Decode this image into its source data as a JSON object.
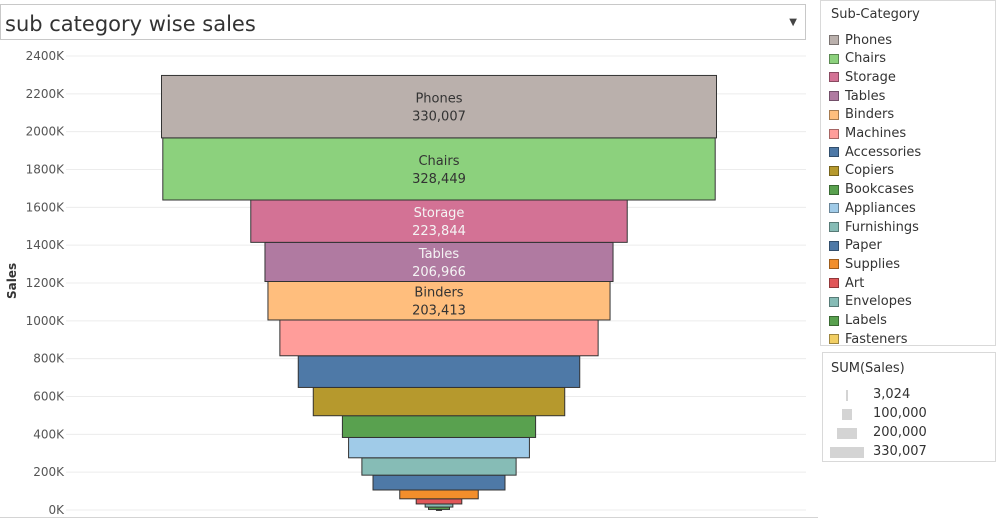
{
  "title": "sub category wise sales",
  "legend": {
    "title": "Sub-Category",
    "items": [
      {
        "label": "Phones",
        "color": "#bab0ac"
      },
      {
        "label": "Chairs",
        "color": "#8cd17d"
      },
      {
        "label": "Storage",
        "color": "#d37295"
      },
      {
        "label": "Tables",
        "color": "#b07aa1"
      },
      {
        "label": "Binders",
        "color": "#ffbe7d"
      },
      {
        "label": "Machines",
        "color": "#ff9d9a"
      },
      {
        "label": "Accessories",
        "color": "#4e79a7"
      },
      {
        "label": "Copiers",
        "color": "#b6992d"
      },
      {
        "label": "Bookcases",
        "color": "#59a14f"
      },
      {
        "label": "Appliances",
        "color": "#a0cbe8"
      },
      {
        "label": "Furnishings",
        "color": "#86bcb6"
      },
      {
        "label": "Paper",
        "color": "#4e79a7"
      },
      {
        "label": "Supplies",
        "color": "#f28e2b"
      },
      {
        "label": "Art",
        "color": "#e15759"
      },
      {
        "label": "Envelopes",
        "color": "#86bcb6"
      },
      {
        "label": "Labels",
        "color": "#59a14f"
      },
      {
        "label": "Fasteners",
        "color": "#f1ce63"
      }
    ]
  },
  "size_legend": {
    "title": "SUM(Sales)",
    "items": [
      {
        "label": "3,024",
        "value": 3024
      },
      {
        "label": "100,000",
        "value": 100000
      },
      {
        "label": "200,000",
        "value": 200000
      },
      {
        "label": "330,007",
        "value": 330007
      }
    ]
  },
  "chart_data": {
    "type": "bar",
    "title": "sub category wise sales",
    "ylabel": "Sales",
    "ylim": [
      0,
      2400000
    ],
    "y_ticks": [
      "0K",
      "200K",
      "400K",
      "600K",
      "800K",
      "1000K",
      "1200K",
      "1400K",
      "1600K",
      "1800K",
      "2000K",
      "2200K",
      "2400K"
    ],
    "y_tick_values": [
      0,
      200000,
      400000,
      600000,
      800000,
      1000000,
      1200000,
      1400000,
      1600000,
      1800000,
      2000000,
      2200000,
      2400000
    ],
    "stacked": true,
    "categories": [
      "Phones",
      "Chairs",
      "Storage",
      "Tables",
      "Binders",
      "Machines",
      "Accessories",
      "Copiers",
      "Bookcases",
      "Appliances",
      "Furnishings",
      "Paper",
      "Supplies",
      "Art",
      "Envelopes",
      "Labels",
      "Fasteners"
    ],
    "values": [
      330007,
      328449,
      223844,
      206966,
      203413,
      189239,
      167380,
      149528,
      114880,
      107532,
      91705,
      78479,
      46674,
      27119,
      16476,
      12486,
      3024
    ],
    "data_labels": [
      {
        "category": "Phones",
        "text": "330,007"
      },
      {
        "category": "Chairs",
        "text": "328,449"
      },
      {
        "category": "Storage",
        "text": "223,844"
      },
      {
        "category": "Tables",
        "text": "206,966"
      },
      {
        "category": "Binders",
        "text": "203,413"
      }
    ],
    "grid": true,
    "legend_position": "right"
  }
}
